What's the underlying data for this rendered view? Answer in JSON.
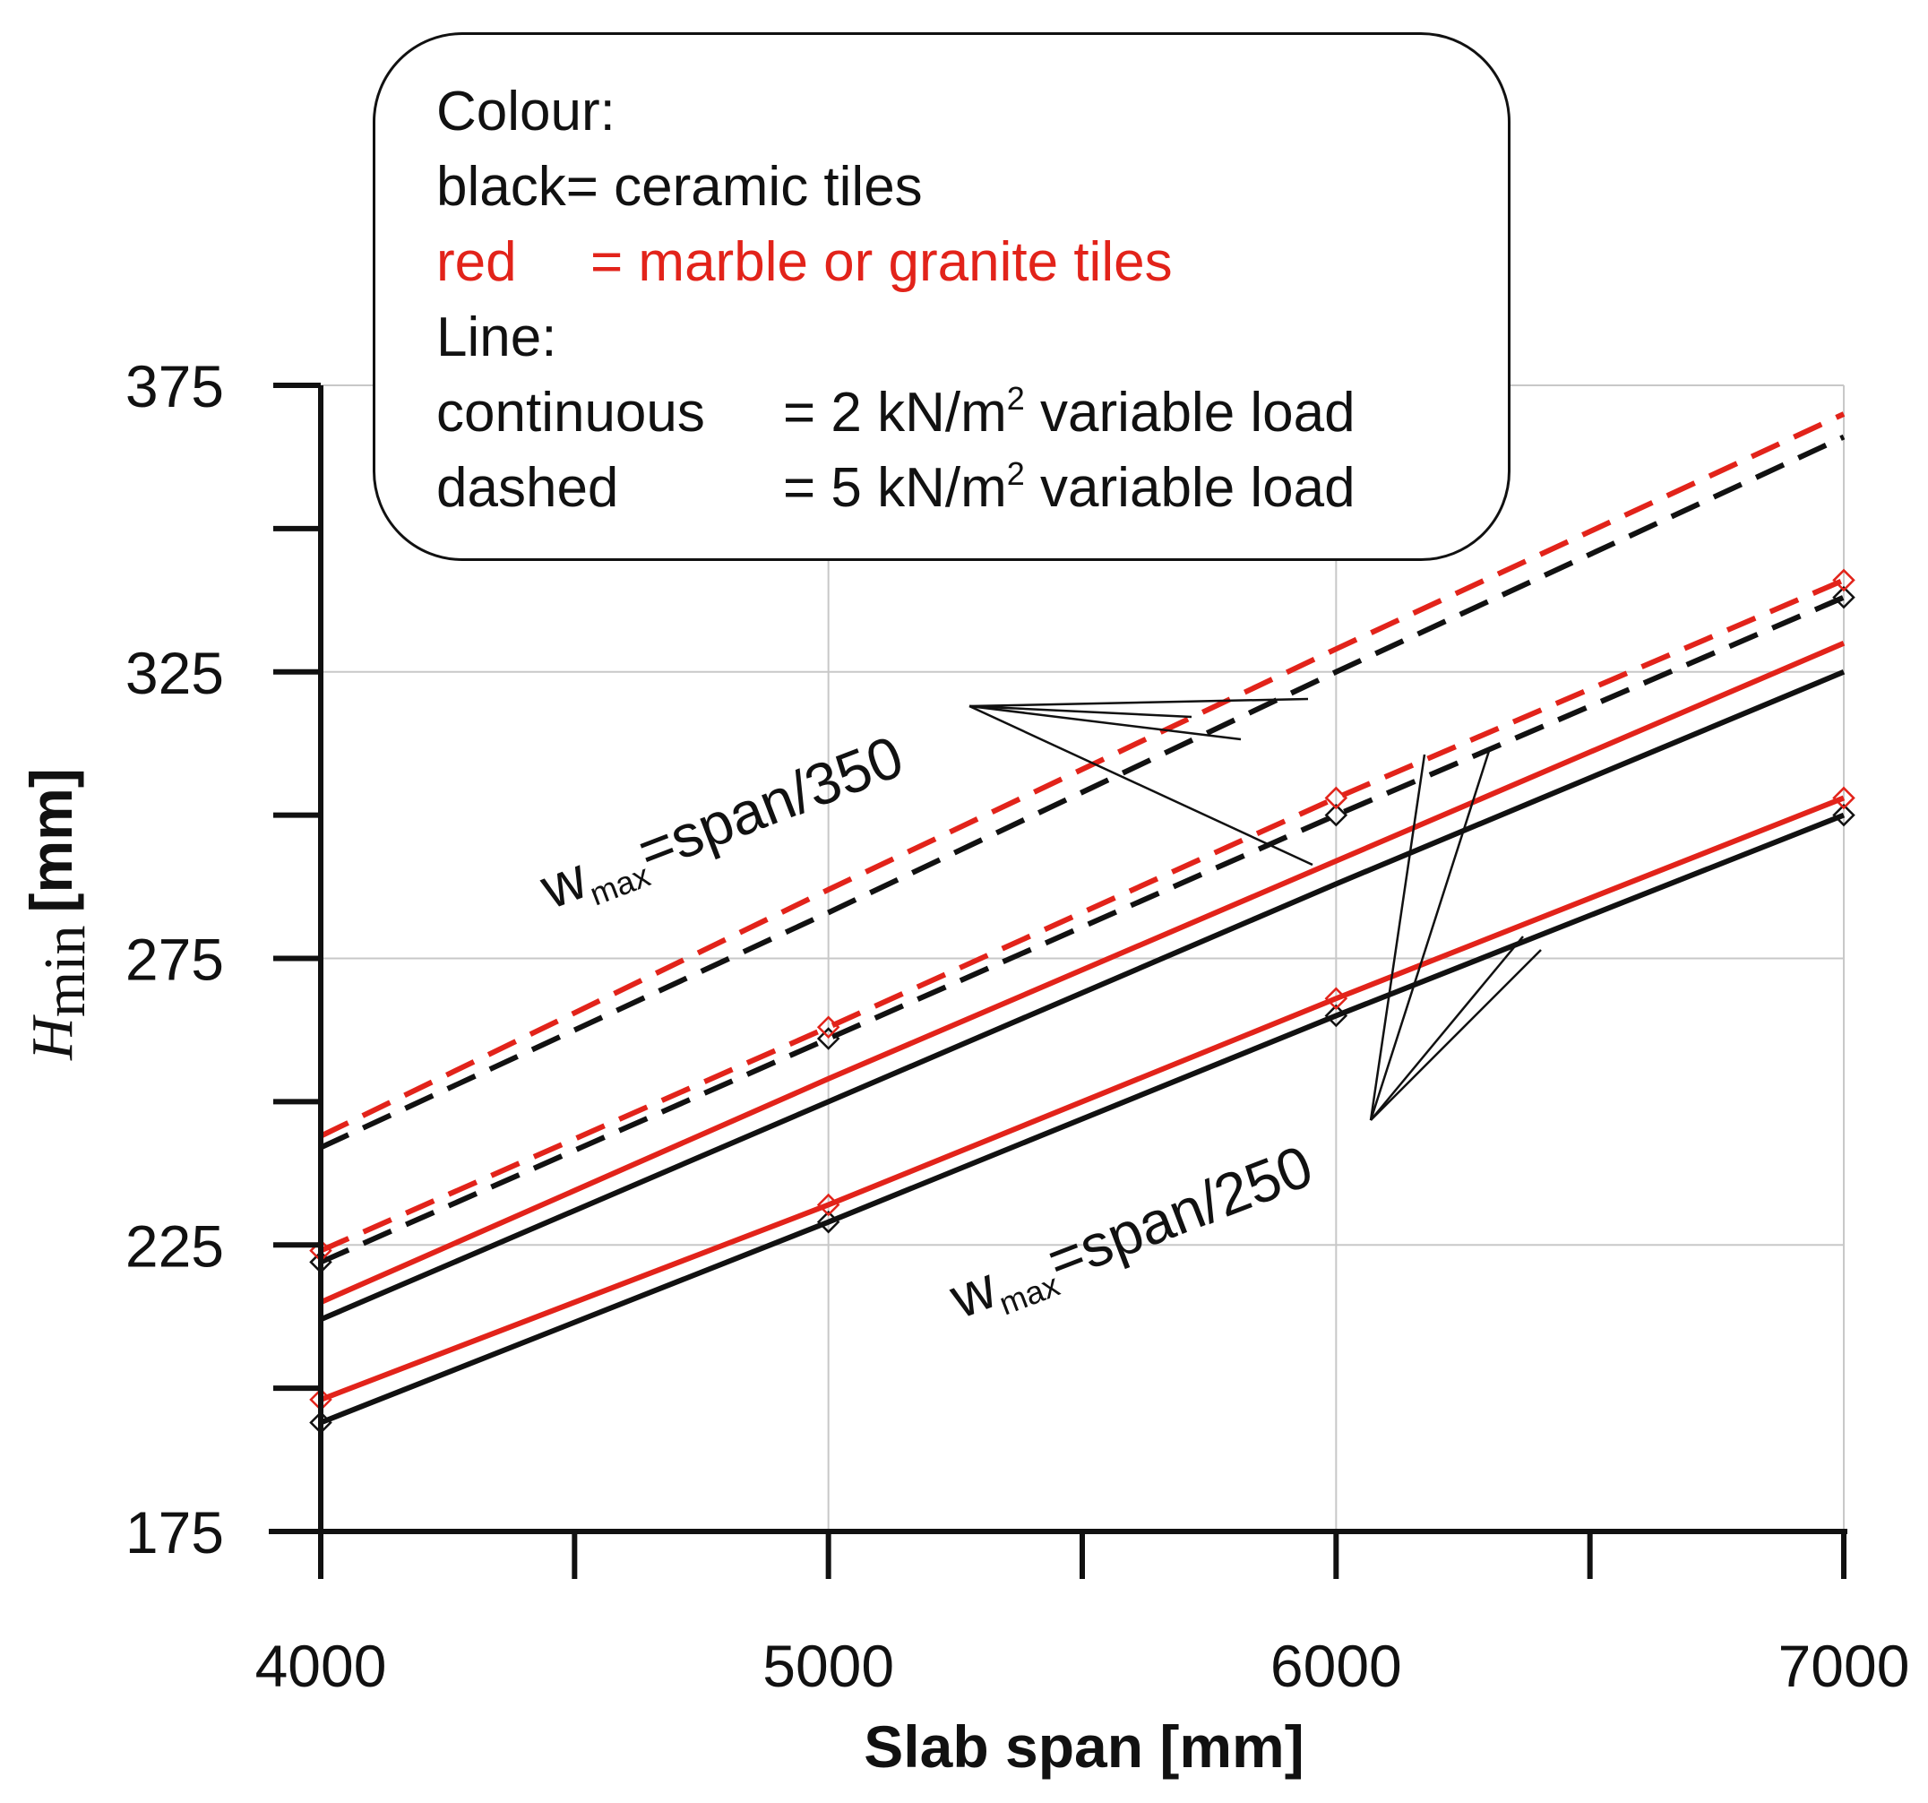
{
  "chart_data": {
    "type": "line",
    "title": "",
    "xlabel": "Slab span [mm]",
    "ylabel_main": "H",
    "ylabel_sub": "min",
    "ylabel_unit": "[mm]",
    "xlim": [
      4000,
      7000
    ],
    "ylim": [
      175,
      375
    ],
    "x_ticks": [
      4000,
      5000,
      6000,
      7000
    ],
    "x_minor_ticks": [
      4500,
      5500,
      6500
    ],
    "y_ticks": [
      175,
      225,
      275,
      325,
      375
    ],
    "y_minor_ticks": [
      200,
      250,
      300,
      350
    ],
    "grid": true,
    "x": [
      4000,
      5000,
      6000,
      7000
    ],
    "series": [
      {
        "name": "ceramic tiles, 2 kN/m2, span/250",
        "color": "#111111",
        "dash": false,
        "values": [
          194,
          229,
          265,
          300
        ],
        "markers": true
      },
      {
        "name": "marble or granite tiles, 2 kN/m2, span/250",
        "color": "#e2231a",
        "dash": false,
        "values": [
          198,
          232,
          268,
          303
        ],
        "markers": true
      },
      {
        "name": "ceramic tiles, 2 kN/m2, span/350",
        "color": "#111111",
        "dash": false,
        "values": [
          212,
          250,
          288,
          325
        ],
        "markers": false
      },
      {
        "name": "marble or granite tiles, 2 kN/m2, span/350",
        "color": "#e2231a",
        "dash": false,
        "values": [
          215,
          254,
          292,
          330
        ],
        "markers": false
      },
      {
        "name": "ceramic tiles, 5 kN/m2, span/250",
        "color": "#111111",
        "dash": true,
        "values": [
          222,
          261,
          300,
          338
        ],
        "markers": true
      },
      {
        "name": "marble or granite tiles, 5 kN/m2, span/250",
        "color": "#e2231a",
        "dash": true,
        "values": [
          224,
          263,
          303,
          341
        ],
        "markers": true
      },
      {
        "name": "ceramic tiles, 5 kN/m2, span/350",
        "color": "#111111",
        "dash": true,
        "values": [
          242,
          283,
          325,
          366
        ],
        "markers": false
      },
      {
        "name": "marble or granite tiles, 5 kN/m2, span/350",
        "color": "#e2231a",
        "dash": true,
        "values": [
          244,
          287,
          329,
          370
        ],
        "markers": false
      }
    ],
    "annotations": [
      {
        "prefix": "w",
        "sub": "max",
        "suffix": "=span/350"
      },
      {
        "prefix": "w",
        "sub": "max",
        "suffix": "=span/250"
      }
    ],
    "legend_placement": "top-center"
  },
  "legend": {
    "colour_heading": "Colour:",
    "black_line": "black= ceramic tiles",
    "red_key": "red",
    "red_value": "= marble or granite tiles",
    "line_heading": "Line:",
    "continuous_key": "continuous",
    "continuous_value_a": "= 2 kN/m",
    "continuous_sup": "2",
    "continuous_value_b": " variable load",
    "dashed_key": "dashed",
    "dashed_value_a": "= 5 kN/m",
    "dashed_sup": "2",
    "dashed_value_b": " variable load"
  },
  "colors": {
    "black": "#111111",
    "red": "#e2231a",
    "grid": "#c8c8c8"
  }
}
